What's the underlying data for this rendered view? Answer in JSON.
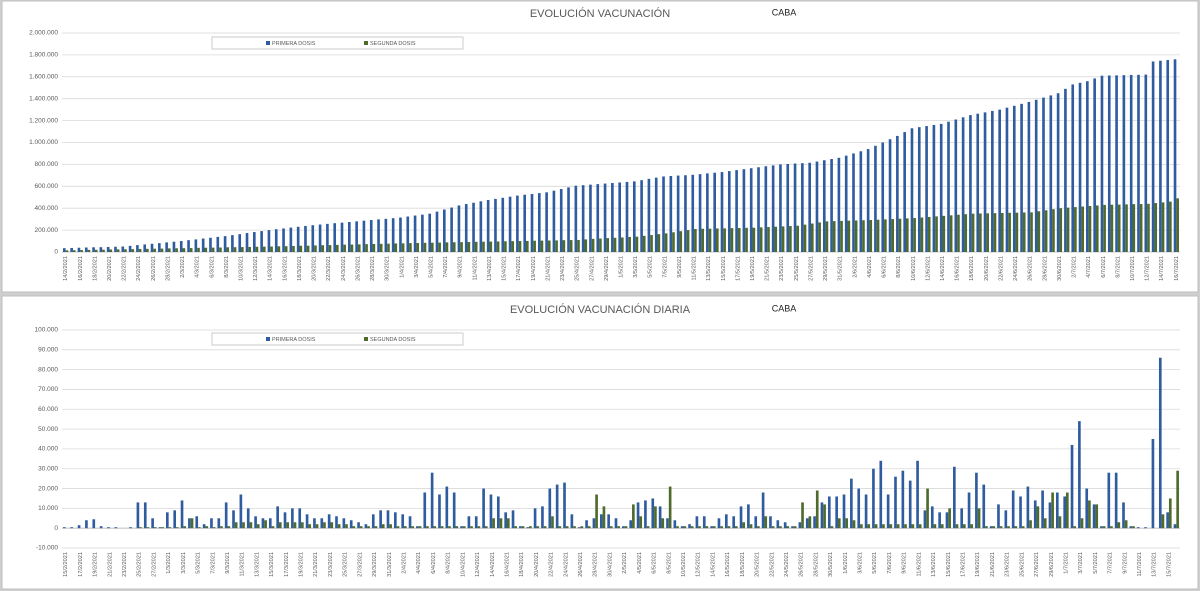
{
  "chart_data": [
    {
      "type": "bar",
      "title": "EVOLUCIÓN VACUNACIÓN",
      "subtitle": "CABA",
      "legend": "top-left",
      "grid": true,
      "ylim": [
        0,
        2000000
      ],
      "yticks": [
        0,
        {
          "value": 200000,
          "label": "200.000"
        },
        {
          "value": 400000,
          "label": "400.000"
        },
        {
          "value": 600000,
          "label": "600.000"
        },
        {
          "value": 800000,
          "label": "800.000"
        },
        {
          "value": 1000000,
          "label": "1.000.000"
        },
        {
          "value": 1200000,
          "label": "1.200.000"
        },
        {
          "value": 1400000,
          "label": "1.400.000"
        },
        {
          "value": 1600000,
          "label": "1.600.000"
        },
        {
          "value": 1800000,
          "label": "1.800.000"
        },
        {
          "value": 2000000,
          "label": "2.000.000"
        }
      ],
      "categories": [
        "14/2/2021",
        null,
        "16/2/2021",
        null,
        "18/2/2021",
        null,
        "20/2/2021",
        null,
        "22/2/2021",
        null,
        "24/2/2021",
        null,
        "26/2/2021",
        null,
        "28/2/2021",
        null,
        "2/3/2021",
        null,
        "4/3/2021",
        null,
        "6/3/2021",
        null,
        "8/3/2021",
        null,
        "10/3/2021",
        null,
        "12/3/2021",
        null,
        "14/3/2021",
        null,
        "16/3/2021",
        null,
        "18/3/2021",
        null,
        "20/3/2021",
        null,
        "22/3/2021",
        null,
        "24/3/2021",
        null,
        "26/3/2021",
        null,
        "28/3/2021",
        null,
        "30/3/2021",
        null,
        "1/4/2021",
        null,
        "3/4/2021",
        null,
        "5/4/2021",
        null,
        "7/4/2021",
        null,
        "9/4/2021",
        null,
        "11/4/2021",
        null,
        "13/4/2021",
        null,
        "15/4/2021",
        null,
        "17/4/2021",
        null,
        "19/4/2021",
        null,
        "21/4/2021",
        null,
        "23/4/2021",
        null,
        "25/4/2021",
        null,
        "27/4/2021",
        null,
        "29/4/2021",
        null,
        "1/5/2021",
        null,
        "3/5/2021",
        null,
        "5/5/2021",
        null,
        "7/5/2021",
        null,
        "9/5/2021",
        null,
        "11/5/2021",
        null,
        "13/5/2021",
        null,
        "15/5/2021",
        null,
        "17/5/2021",
        null,
        "19/5/2021",
        null,
        "21/5/2021",
        null,
        "23/5/2021",
        null,
        "25/5/2021",
        null,
        "27/5/2021",
        null,
        "29/5/2021",
        null,
        "31/5/2021",
        null,
        "2/6/2021",
        null,
        "4/6/2021",
        null,
        "6/6/2021",
        null,
        "8/6/2021",
        null,
        "10/6/2021",
        null,
        "12/6/2021",
        null,
        "14/6/2021",
        null,
        "16/6/2021",
        null,
        "18/6/2021",
        null,
        "20/6/2021",
        null,
        "22/6/2021",
        null,
        "24/6/2021",
        null,
        "26/6/2021",
        null,
        "28/6/2021",
        null,
        "30/6/2021",
        null,
        "2/7/2021",
        null,
        "4/7/2021",
        null,
        "6/7/2021",
        null,
        "8/7/2021",
        null,
        "10/7/2021",
        null,
        "12/7/2021",
        null,
        "14/7/2021",
        null,
        "16/7/2021"
      ],
      "series": [
        {
          "name": "PRIMERA DOSIS",
          "color": "#2f5b9f",
          "values": [
            35000,
            37000,
            39000,
            41000,
            43000,
            44000,
            46000,
            48000,
            50000,
            56000,
            63000,
            69000,
            75000,
            81000,
            88000,
            94000,
            100000,
            108000,
            115000,
            123000,
            130000,
            138000,
            145000,
            154000,
            163000,
            173000,
            182000,
            191000,
            200000,
            208000,
            215000,
            223000,
            230000,
            238000,
            245000,
            251000,
            257000,
            263000,
            268000,
            274000,
            280000,
            286000,
            292000,
            298000,
            303000,
            309000,
            315000,
            324000,
            333000,
            341000,
            350000,
            369000,
            388000,
            406000,
            425000,
            438000,
            450000,
            463000,
            475000,
            485000,
            495000,
            505000,
            515000,
            523000,
            530000,
            538000,
            545000,
            560000,
            575000,
            590000,
            605000,
            610000,
            615000,
            620000,
            625000,
            630000,
            635000,
            640000,
            645000,
            656000,
            668000,
            679000,
            690000,
            694000,
            698000,
            701000,
            705000,
            711000,
            718000,
            724000,
            730000,
            739000,
            748000,
            756000,
            765000,
            774000,
            783000,
            791000,
            800000,
            804000,
            808000,
            811000,
            815000,
            826000,
            838000,
            849000,
            860000,
            880000,
            900000,
            920000,
            940000,
            970000,
            1000000,
            1030000,
            1060000,
            1095000,
            1130000,
            1140000,
            1150000,
            1160000,
            1170000,
            1190000,
            1210000,
            1230000,
            1250000,
            1263000,
            1275000,
            1288000,
            1300000,
            1318000,
            1335000,
            1353000,
            1370000,
            1390000,
            1410000,
            1430000,
            1450000,
            1490000,
            1530000,
            1545000,
            1560000,
            1585000,
            1610000,
            1612000,
            1613000,
            1615000,
            1617000,
            1618000,
            1620000,
            1740000,
            1747000,
            1753000,
            1760000
          ]
        },
        {
          "name": "SEGUNDA DOSIS",
          "color": "#4f6b2c",
          "values": [
            15000,
            16000,
            18000,
            19000,
            20000,
            21000,
            23000,
            24000,
            25000,
            26000,
            28000,
            29000,
            30000,
            31000,
            33000,
            34000,
            35000,
            36000,
            38000,
            39000,
            40000,
            41000,
            43000,
            44000,
            45000,
            46000,
            48000,
            49000,
            50000,
            52000,
            53000,
            55000,
            57000,
            58000,
            60000,
            62000,
            63000,
            65000,
            67000,
            68000,
            70000,
            72000,
            73000,
            75000,
            76000,
            78000,
            79000,
            81000,
            82000,
            84000,
            85000,
            86000,
            88000,
            89000,
            90000,
            91000,
            93000,
            94000,
            95000,
            96000,
            98000,
            99000,
            100000,
            101000,
            103000,
            104000,
            105000,
            106000,
            108000,
            109000,
            110000,
            115000,
            120000,
            123000,
            127000,
            130000,
            133000,
            137000,
            140000,
            148000,
            155000,
            163000,
            170000,
            180000,
            190000,
            200000,
            210000,
            212000,
            213000,
            215000,
            216000,
            218000,
            219000,
            221000,
            222000,
            225000,
            228000,
            231000,
            234000,
            237000,
            240000,
            250000,
            260000,
            270000,
            280000,
            282000,
            284000,
            286000,
            288000,
            290000,
            292000,
            295000,
            298000,
            301000,
            304000,
            307000,
            310000,
            315000,
            320000,
            325000,
            330000,
            335000,
            340000,
            345000,
            350000,
            352000,
            353000,
            355000,
            356000,
            358000,
            359000,
            361000,
            362000,
            372000,
            381000,
            391000,
            400000,
            405000,
            410000,
            415000,
            420000,
            425000,
            430000,
            432000,
            433000,
            435000,
            437000,
            438000,
            440000,
            447000,
            453000,
            460000,
            490000
          ]
        }
      ]
    },
    {
      "type": "bar",
      "title": "EVOLUCIÓN VACUNACIÓN DIARIA",
      "subtitle": "CABA",
      "legend": "top-left",
      "grid": true,
      "ylim": [
        -10000,
        100000
      ],
      "yticks": [
        {
          "value": -10000,
          "label": "-10.000"
        },
        0,
        {
          "value": 10000,
          "label": "10.000"
        },
        {
          "value": 20000,
          "label": "20.000"
        },
        {
          "value": 30000,
          "label": "30.000"
        },
        {
          "value": 40000,
          "label": "40.000"
        },
        {
          "value": 50000,
          "label": "50.000"
        },
        {
          "value": 60000,
          "label": "60.000"
        },
        {
          "value": 70000,
          "label": "70.000"
        },
        {
          "value": 80000,
          "label": "80.000"
        },
        {
          "value": 90000,
          "label": "90.000"
        },
        {
          "value": 100000,
          "label": "100.000"
        }
      ],
      "categories": [
        "15/2/2021",
        null,
        "17/2/2021",
        null,
        "19/2/2021",
        null,
        "21/2/2021",
        null,
        "23/2/2021",
        null,
        "25/2/2021",
        null,
        "27/2/2021",
        null,
        "1/3/2021",
        null,
        "3/3/2021",
        null,
        "5/3/2021",
        null,
        "7/3/2021",
        null,
        "9/3/2021",
        null,
        "11/3/2021",
        null,
        "13/3/2021",
        null,
        "15/3/2021",
        null,
        "17/3/2021",
        null,
        "19/3/2021",
        null,
        "21/3/2021",
        null,
        "23/3/2021",
        null,
        "25/3/2021",
        null,
        "27/3/2021",
        null,
        "29/3/2021",
        null,
        "31/3/2021",
        null,
        "2/4/2021",
        null,
        "4/4/2021",
        null,
        "6/4/2021",
        null,
        "8/4/2021",
        null,
        "10/4/2021",
        null,
        "12/4/2021",
        null,
        "14/4/2021",
        null,
        "16/4/2021",
        null,
        "18/4/2021",
        null,
        "20/4/2021",
        null,
        "22/4/2021",
        null,
        "24/4/2021",
        null,
        "26/4/2021",
        null,
        "28/4/2021",
        null,
        "30/4/2021",
        null,
        "2/5/2021",
        null,
        "4/5/2021",
        null,
        "6/5/2021",
        null,
        "8/5/2021",
        null,
        "10/5/2021",
        null,
        "12/5/2021",
        null,
        "14/5/2021",
        null,
        "16/5/2021",
        null,
        "18/5/2021",
        null,
        "20/5/2021",
        null,
        "22/5/2021",
        null,
        "24/5/2021",
        null,
        "26/5/2021",
        null,
        "28/5/2021",
        null,
        "30/5/2021",
        null,
        "1/6/2021",
        null,
        "3/6/2021",
        null,
        "5/6/2021",
        null,
        "7/6/2021",
        null,
        "9/6/2021",
        null,
        "11/6/2021",
        null,
        "13/6/2021",
        null,
        "15/6/2021",
        null,
        "17/6/2021",
        null,
        "19/6/2021",
        null,
        "21/6/2021",
        null,
        "23/6/2021",
        null,
        "25/6/2021",
        null,
        "27/6/2021",
        null,
        "29/6/2021",
        null,
        "1/7/2021",
        null,
        "3/7/2021",
        null,
        "5/7/2021",
        null,
        "7/7/2021",
        null,
        "9/7/2021",
        null,
        "11/7/2021",
        null,
        "13/7/2021",
        null,
        "15/7/2021",
        null
      ],
      "series": [
        {
          "name": "PRIMERA DOSIS",
          "color": "#2f5b9f",
          "values": [
            500,
            500,
            1500,
            4000,
            4500,
            1000,
            500,
            500,
            0,
            500,
            13000,
            13000,
            5000,
            500,
            8000,
            9000,
            14000,
            5000,
            6000,
            2000,
            5000,
            5000,
            13000,
            9000,
            17000,
            10000,
            6000,
            5000,
            5000,
            11000,
            8000,
            10000,
            10000,
            7000,
            5000,
            5000,
            7000,
            6000,
            5000,
            4000,
            3000,
            2000,
            7000,
            9000,
            9000,
            8000,
            7000,
            6000,
            1000,
            18000,
            28000,
            17000,
            21000,
            18000,
            1000,
            6000,
            6000,
            20000,
            17000,
            16000,
            8000,
            9000,
            1000,
            500,
            10000,
            11000,
            20000,
            22000,
            23000,
            7000,
            500,
            4000,
            5000,
            7000,
            7000,
            5000,
            1000,
            4000,
            13000,
            14000,
            15000,
            11000,
            5000,
            4000,
            1000,
            2000,
            6000,
            6000,
            1000,
            5000,
            7000,
            6000,
            11000,
            12000,
            6000,
            18000,
            6000,
            4000,
            3000,
            1000,
            3000,
            5000,
            6000,
            13000,
            16000,
            16000,
            17000,
            25000,
            20000,
            17000,
            30000,
            34000,
            17000,
            26000,
            29000,
            24000,
            34000,
            9000,
            11000,
            8000,
            8000,
            31000,
            10000,
            18000,
            28000,
            22000,
            1000,
            12000,
            9000,
            19000,
            16000,
            21000,
            14000,
            19000,
            13000,
            18000,
            16000,
            42000,
            54000,
            20000,
            12000,
            1000,
            28000,
            28000,
            13000,
            1000,
            500,
            500,
            45000,
            86000,
            8000,
            2000
          ]
        },
        {
          "name": "SEGUNDA DOSIS",
          "color": "#4f6b2c",
          "values": [
            0,
            0,
            0,
            0,
            0,
            0,
            0,
            0,
            0,
            0,
            500,
            500,
            500,
            500,
            500,
            500,
            1000,
            5000,
            500,
            1000,
            500,
            1000,
            1000,
            3000,
            3000,
            3000,
            2000,
            4000,
            1000,
            3000,
            3000,
            3000,
            3000,
            2000,
            2000,
            3000,
            3000,
            2000,
            2000,
            1000,
            1000,
            1000,
            1000,
            2000,
            2000,
            1000,
            1000,
            1000,
            1000,
            1000,
            1000,
            1000,
            1000,
            1000,
            1000,
            1000,
            1000,
            1000,
            5000,
            5000,
            5000,
            1000,
            1000,
            1000,
            1000,
            1000,
            6000,
            1000,
            1000,
            1000,
            1000,
            1000,
            17000,
            11000,
            1000,
            1000,
            1000,
            12000,
            6000,
            1000,
            11000,
            5000,
            21000,
            1000,
            1000,
            1000,
            1000,
            1000,
            1000,
            1000,
            1000,
            1000,
            3000,
            2000,
            1000,
            6000,
            1000,
            1000,
            1000,
            1000,
            13000,
            6000,
            19000,
            12000,
            1000,
            5000,
            5000,
            4000,
            2000,
            2000,
            2000,
            2000,
            2000,
            2000,
            2000,
            2000,
            2000,
            20000,
            2000,
            2000,
            10000,
            2000,
            2000,
            2000,
            10000,
            1000,
            1000,
            1000,
            1000,
            1000,
            1000,
            4000,
            11000,
            5000,
            18000,
            6000,
            18000,
            1000,
            5000,
            14000,
            12000,
            1000,
            1000,
            3000,
            4000,
            1000,
            0,
            0,
            0,
            7000,
            15000,
            29000
          ]
        }
      ]
    }
  ]
}
